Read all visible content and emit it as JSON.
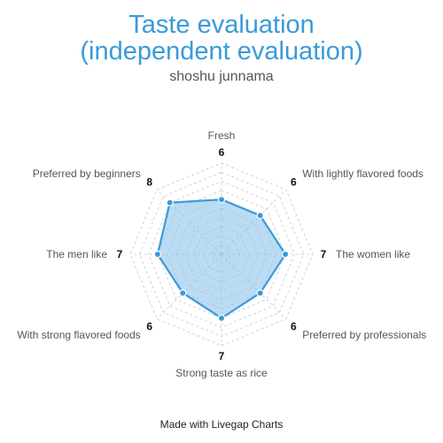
{
  "chart_data": {
    "type": "radar",
    "title_line1": "Taste evaluation",
    "title_line2": "(independent evaluation)",
    "subtitle": "shoshu junnama",
    "axes": [
      "Fresh",
      "With lightly flavored foods",
      "The women like",
      "Preferred by professionals",
      "Strong taste as rice",
      "With strong flavored foods",
      "The men like",
      "Preferred by beginners"
    ],
    "values": [
      6,
      6,
      7,
      6,
      7,
      6,
      7,
      8
    ],
    "rlim": [
      0,
      10
    ],
    "grid_levels": 10,
    "colors": {
      "line": "#3a9ad9",
      "fill": "#8ec3ea",
      "grid": "#c8c8c8"
    }
  },
  "footer": "Made with Livegap Charts"
}
